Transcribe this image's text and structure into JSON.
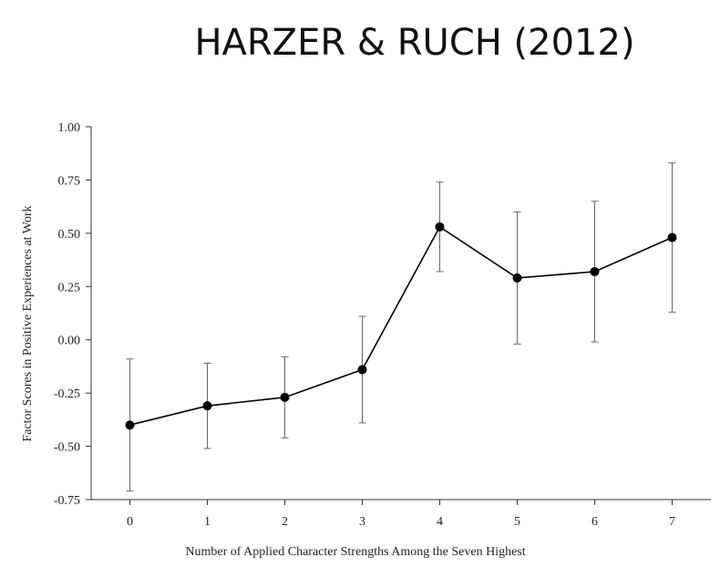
{
  "chart_data": {
    "type": "line",
    "title": "HARZER & RUCH (2012)",
    "x_label": "Number of Applied Character Strengths Among the Seven Highest",
    "y_label": "Factor Scores in Positive Experiences at Work",
    "x": [
      0,
      1,
      2,
      3,
      4,
      5,
      6,
      7
    ],
    "xlim": [
      -0.5,
      7.5
    ],
    "xticks": [
      0,
      1,
      2,
      3,
      4,
      5,
      6,
      7
    ],
    "ylim": [
      -0.75,
      1.0
    ],
    "yticks": [
      {
        "value": -0.75,
        "label": "-0.75"
      },
      {
        "value": -0.5,
        "label": "-0.50"
      },
      {
        "value": -0.25,
        "label": "-0.25"
      },
      {
        "value": 0,
        "label": "0.00"
      },
      0.25,
      {
        "value": 0.5,
        "label": "0.50"
      },
      0.75,
      {
        "value": 1,
        "label": "1.00"
      }
    ],
    "series": [
      {
        "color": "#000000",
        "values": [
          -0.4,
          -0.31,
          -0.27,
          -0.14,
          0.53,
          0.29,
          0.32,
          0.48
        ],
        "errors": [
          0.31,
          0.2,
          0.19,
          0.25,
          0.21,
          0.31,
          0.33,
          0.35
        ]
      }
    ]
  }
}
